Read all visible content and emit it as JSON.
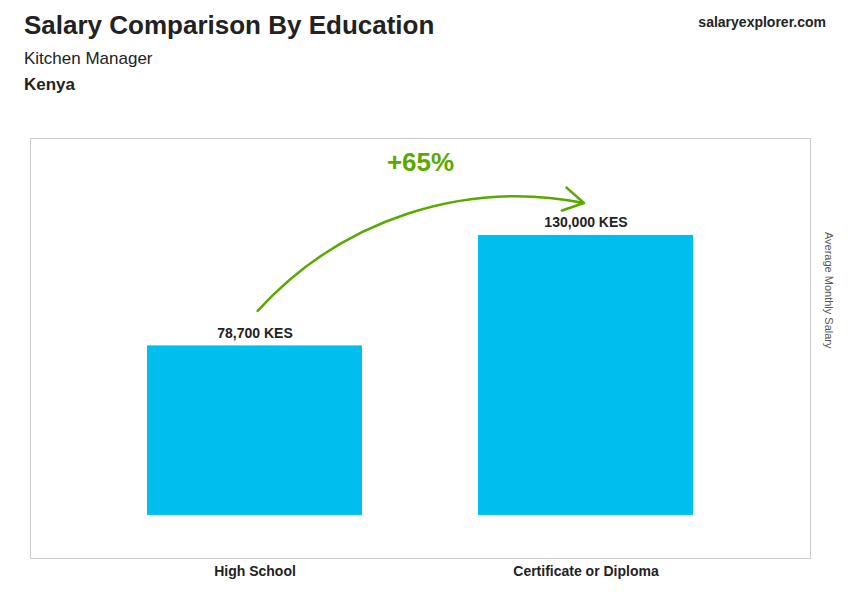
{
  "chart_data": {
    "type": "bar",
    "title": "Salary Comparison By Education",
    "subtitle": "Kitchen Manager",
    "annotations": [
      "Kenya",
      "salaryexplorer.com",
      "+65%"
    ],
    "y_label": "Average Monthly Salary",
    "categories": [
      "High School",
      "Certificate or Diploma"
    ],
    "values": [
      78700,
      130000
    ],
    "value_labels": [
      "78,700 KES",
      "130,000 KES"
    ],
    "data_labels": true,
    "color": "#00bfef",
    "ylim": [
      -20000,
      175000
    ],
    "tick_labels": "x",
    "grid": false
  }
}
